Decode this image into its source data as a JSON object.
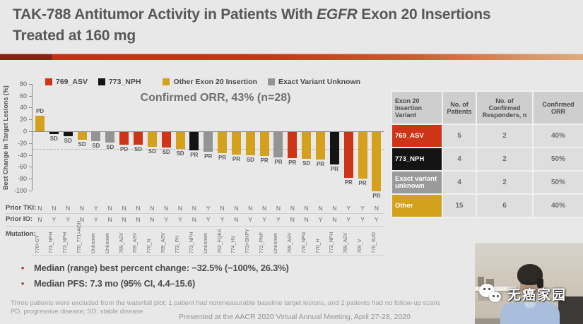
{
  "header": {
    "title_part1": "TAK-788 Antitumor Activity in Patients With ",
    "title_italic": "EGFR",
    "title_part2": " Exon 20 Insertions Treated at 160 mg"
  },
  "chart_data": {
    "type": "bar",
    "subtype": "waterfall",
    "title": "Confirmed ORR, 43% (n=28)",
    "ylabel": "Best Change in Target Lesions (%)",
    "ylim": [
      -100,
      80
    ],
    "yticks": [
      80,
      60,
      40,
      20,
      0,
      -20,
      -40,
      -60,
      -80,
      -100
    ],
    "reference_line": -30,
    "grid": false,
    "legend_position": "top",
    "legend": [
      {
        "label": "769_ASV",
        "color": "#ce3417"
      },
      {
        "label": "773_NPH",
        "color": "#141414"
      },
      {
        "label": "Other Exon 20 Insertion",
        "color": "#d4a11d"
      },
      {
        "label": "Exact Variant Unknown",
        "color": "#949494"
      }
    ],
    "group_colors": {
      "769_ASV": "#ce3417",
      "773_NPH": "#141414",
      "Other": "#d4a11d",
      "Unknown": "#949494"
    },
    "axis_rows": {
      "prior_tki_label": "Prior TKI:",
      "prior_io_label": "Prior IO:",
      "mutation_label": "Mutation:"
    },
    "patients": [
      {
        "value": 26.3,
        "response": "PD",
        "group": "Other",
        "mutation": "770>GY",
        "prior_tki": "N",
        "prior_io": "N"
      },
      {
        "value": -3,
        "response": "SD",
        "group": "773_NPH",
        "mutation": "773_NPH",
        "prior_tki": "N",
        "prior_io": "Y"
      },
      {
        "value": -7,
        "response": "SD",
        "group": "773_NPH",
        "mutation": "773_NPH",
        "prior_tki": "N",
        "prior_io": "Y"
      },
      {
        "value": -13,
        "response": "SD",
        "group": "Other",
        "mutation": "770_771>AGH",
        "prior_tki": "N",
        "prior_io": "N"
      },
      {
        "value": -15,
        "response": "SD",
        "group": "Unknown",
        "mutation": "Unknown",
        "prior_tki": "Y",
        "prior_io": "Y"
      },
      {
        "value": -18,
        "response": "SD",
        "group": "Unknown",
        "mutation": "Unknown",
        "prior_tki": "N",
        "prior_io": "N"
      },
      {
        "value": -21,
        "response": "PD",
        "group": "769_ASV",
        "mutation": "769_ASV",
        "prior_tki": "N",
        "prior_io": "N"
      },
      {
        "value": -22,
        "response": "SD",
        "group": "769_ASV",
        "mutation": "769_ASV",
        "prior_tki": "N",
        "prior_io": "N"
      },
      {
        "value": -25,
        "response": "SD",
        "group": "Other",
        "mutation": "770_N",
        "prior_tki": "N",
        "prior_io": "N"
      },
      {
        "value": -26,
        "response": "SD",
        "group": "769_ASV",
        "mutation": "769_ASV",
        "prior_tki": "N",
        "prior_io": "Y"
      },
      {
        "value": -28,
        "response": "SD",
        "group": "Other",
        "mutation": "773_PH",
        "prior_tki": "N",
        "prior_io": "Y"
      },
      {
        "value": -31,
        "response": "PR",
        "group": "773_NPH",
        "mutation": "773_NPH",
        "prior_tki": "N",
        "prior_io": "N"
      },
      {
        "value": -33,
        "response": "PR",
        "group": "Unknown",
        "mutation": "Unknown",
        "prior_tki": "Y",
        "prior_io": "Y"
      },
      {
        "value": -36,
        "response": "PR",
        "group": "Other",
        "mutation": "763_FQEA",
        "prior_tki": "N",
        "prior_io": "Y"
      },
      {
        "value": -38,
        "response": "PR",
        "group": "Other",
        "mutation": "774_HV",
        "prior_tki": "N",
        "prior_io": "N"
      },
      {
        "value": -39,
        "response": "SD",
        "group": "Other",
        "mutation": "773>SNPY",
        "prior_tki": "N",
        "prior_io": "Y"
      },
      {
        "value": -40,
        "response": "PR",
        "group": "Other",
        "mutation": "772_PNP",
        "prior_tki": "N",
        "prior_io": "Y"
      },
      {
        "value": -43,
        "response": "PR",
        "group": "Unknown",
        "mutation": "Unknown",
        "prior_tki": "N",
        "prior_io": "Y"
      },
      {
        "value": -44,
        "response": "PR",
        "group": "769_ASV",
        "mutation": "769_ASV",
        "prior_tki": "N",
        "prior_io": "N"
      },
      {
        "value": -45,
        "response": "SD",
        "group": "Other",
        "mutation": "770_NPG",
        "prior_tki": "N",
        "prior_io": "N"
      },
      {
        "value": -46,
        "response": "PR",
        "group": "Other",
        "mutation": "770_H",
        "prior_tki": "N",
        "prior_io": "Y"
      },
      {
        "value": -55,
        "response": "PR",
        "group": "773_NPH",
        "mutation": "773_NPH",
        "prior_tki": "N",
        "prior_io": "N"
      },
      {
        "value": -77,
        "response": "PR",
        "group": "769_ASV",
        "mutation": "769_ASV",
        "prior_tki": "Y",
        "prior_io": "Y"
      },
      {
        "value": -79,
        "response": "PR",
        "group": "Other",
        "mutation": "769_V",
        "prior_tki": "Y",
        "prior_io": "Y"
      },
      {
        "value": -100,
        "response": "PR",
        "group": "Other",
        "mutation": "770_SVD",
        "prior_tki": "N",
        "prior_io": "Y"
      }
    ]
  },
  "table": {
    "headers": [
      "Exon 20\nInsertion\nVariant",
      "No. of\nPatients",
      "No. of\nConfirmed\nResponders, n",
      "Confirmed\nORR"
    ],
    "rows": [
      {
        "variant": "769_ASV",
        "color": "#ce3417",
        "patients": "5",
        "responders": "2",
        "orr": "40%"
      },
      {
        "variant": "773_NPH",
        "color": "#141414",
        "patients": "4",
        "responders": "2",
        "orr": "50%"
      },
      {
        "variant": "Exact variant unknown",
        "color": "#9a9a9a",
        "patients": "4",
        "responders": "2",
        "orr": "50%"
      },
      {
        "variant": "Other",
        "color": "#d4a11d",
        "patients": "15",
        "responders": "6",
        "orr": "40%"
      }
    ]
  },
  "bullets": [
    "Median (range) best percent change: −32.5% (−100%, 26.3%)",
    "Median PFS: 7.3 mo (95% CI, 4.4–15.6)"
  ],
  "footnotes": [
    "Three patients were excluded from the waterfall plot: 1 patient had nonmeasurable baseline target lesions, and 2 patients had no follow-up scans",
    "PD, progressive disease; SD, stable disease"
  ],
  "footer": "Presented at the AACR 2020 Virtual Annual Meeting, April 27-28, 2020",
  "webcam": {
    "watermark": "无癌家园"
  }
}
